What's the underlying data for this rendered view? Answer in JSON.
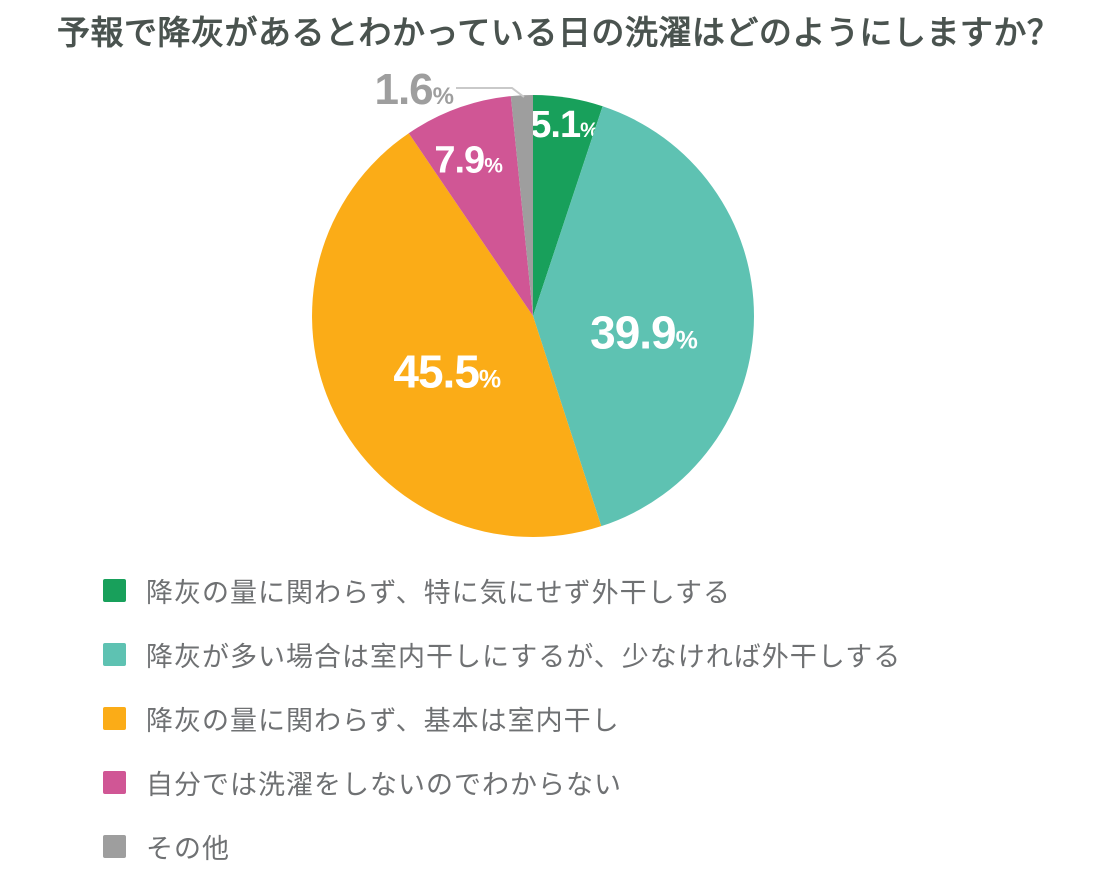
{
  "title": "予報で降灰があるとわかっている日の洗濯はどのようにしますか？",
  "chart_data": {
    "type": "pie",
    "title": "予報で降灰があるとわかっている日の洗濯はどのようにしますか？",
    "unit": "%",
    "direction": "clockwise",
    "start_angle_deg": 0,
    "legend_position": "bottom-left",
    "total": 100.0,
    "slices": [
      {
        "label": "降灰の量に関わらず、特に気にせず外干しする",
        "value": 5.1,
        "value_label": "5.1%",
        "color": "#18a05b",
        "label_placement": "inside"
      },
      {
        "label": "降灰が多い場合は室内干しにするが、少なければ外干しする",
        "value": 39.9,
        "value_label": "39.9%",
        "color": "#5ec2b2",
        "label_placement": "inside"
      },
      {
        "label": "降灰の量に関わらず、基本は室内干し",
        "value": 45.5,
        "value_label": "45.5%",
        "color": "#fbac17",
        "label_placement": "inside"
      },
      {
        "label": "自分では洗濯をしないのでわからない",
        "value": 7.9,
        "value_label": "7.9%",
        "color": "#d05695",
        "label_placement": "inside"
      },
      {
        "label": "その他",
        "value": 1.6,
        "value_label": "1.6%",
        "color": "#9e9e9e",
        "label_placement": "outside-with-leader"
      }
    ],
    "inside_value_label_color": "#ffffff",
    "outside_value_label_color": "#9e9e9e",
    "leader_line_color": "#c9c9c9"
  }
}
